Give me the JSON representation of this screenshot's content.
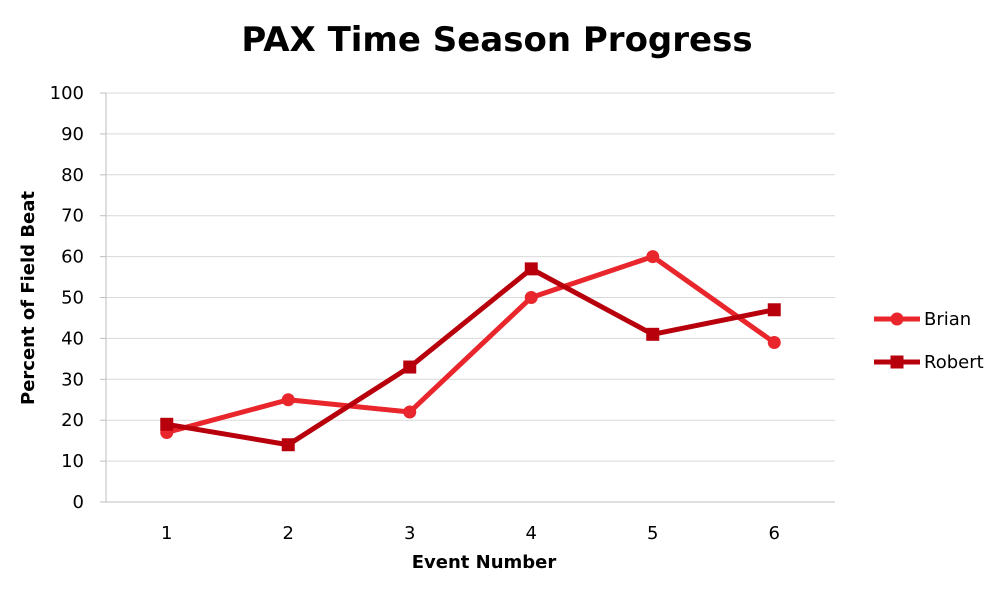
{
  "chart_data": {
    "type": "line",
    "title": "PAX Time Season Progress",
    "xlabel": "Event Number",
    "ylabel": "Percent of Field Beat",
    "x": [
      "1",
      "2",
      "3",
      "4",
      "5",
      "6"
    ],
    "ylim": [
      0,
      100
    ],
    "yticks": [
      "0",
      "10",
      "20",
      "30",
      "40",
      "50",
      "60",
      "70",
      "80",
      "90",
      "100"
    ],
    "grid": "horizontal",
    "legend_position": "right",
    "series": [
      {
        "name": "Brian",
        "values": [
          17,
          25,
          22,
          50,
          60,
          39
        ],
        "color": "#e8262c",
        "marker": "circle"
      },
      {
        "name": "Robert",
        "values": [
          19,
          14,
          33,
          57,
          41,
          47
        ],
        "color": "#b8000c",
        "marker": "square"
      }
    ]
  }
}
